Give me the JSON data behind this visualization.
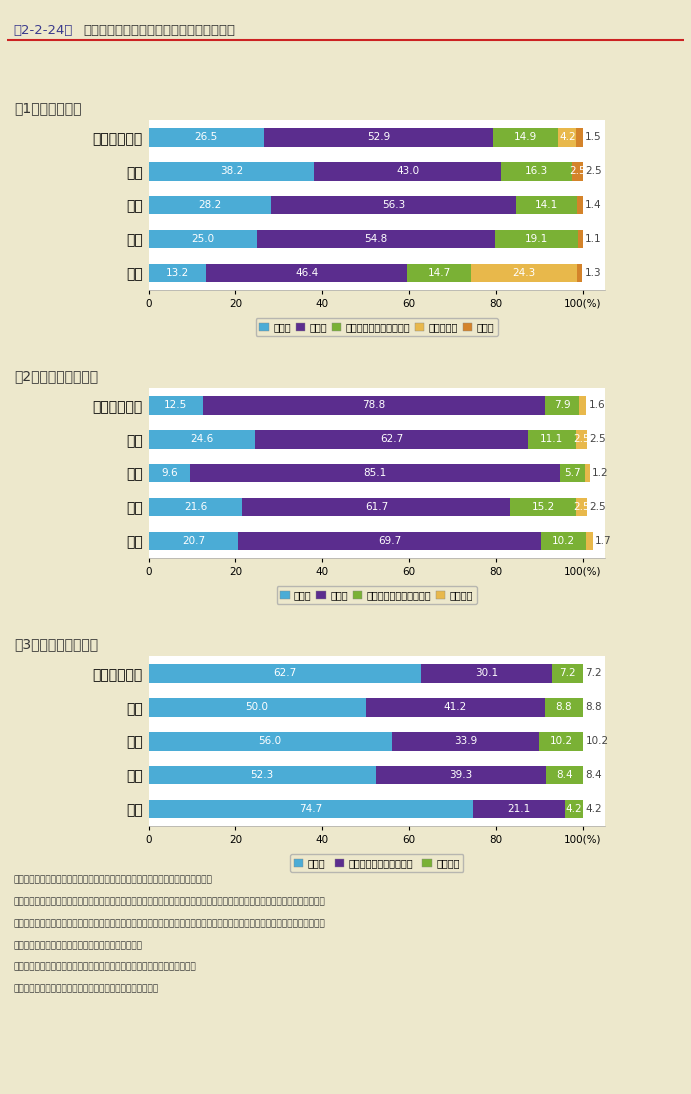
{
  "title_part1": "第2-2-24図",
  "title_part2": "大学の学位別進路動向（平成１４年３月）",
  "bg_color": "#ede8cc",
  "bar_bg": "#ffffff",
  "section1_title": "（1）大学卒業時",
  "section1_categories": [
    "自然科学平均",
    "理学",
    "工学",
    "農学",
    "保健"
  ],
  "section1_data": [
    [
      26.5,
      38.2,
      28.2,
      25.0,
      13.2
    ],
    [
      52.9,
      43.0,
      56.3,
      54.8,
      46.4
    ],
    [
      14.9,
      16.3,
      14.1,
      19.1,
      14.7
    ],
    [
      4.2,
      0.0,
      0.0,
      0.0,
      24.3
    ],
    [
      1.5,
      2.5,
      1.4,
      1.1,
      1.3
    ]
  ],
  "section1_colors": [
    "#4bacd6",
    "#5b2d8e",
    "#7ab135",
    "#e8b84b",
    "#d4832a"
  ],
  "section1_legend": [
    "進学者",
    "就職者",
    "就職が決まっていない者",
    "臨床研修医",
    "その他"
  ],
  "section2_title": "（2）修士課程修了時",
  "section2_categories": [
    "自然科学平均",
    "理学",
    "工学",
    "農学",
    "保健"
  ],
  "section2_data": [
    [
      12.5,
      24.6,
      9.6,
      21.6,
      20.7
    ],
    [
      78.8,
      62.7,
      85.1,
      61.7,
      69.7
    ],
    [
      7.9,
      11.1,
      5.7,
      15.2,
      10.2
    ],
    [
      1.6,
      2.5,
      1.2,
      2.5,
      1.7
    ]
  ],
  "section2_colors": [
    "#4bacd6",
    "#5b2d8e",
    "#7ab135",
    "#e8b84b"
  ],
  "section2_legend": [
    "進学者",
    "就職者",
    "就職が決まっていない者",
    "その他１"
  ],
  "section3_title": "（3）博士課程修了時",
  "section3_categories": [
    "自然科学平均",
    "理学",
    "工学",
    "農学",
    "保健"
  ],
  "section3_data": [
    [
      62.7,
      50.0,
      56.0,
      52.3,
      74.7
    ],
    [
      30.1,
      41.2,
      33.9,
      39.3,
      21.1
    ],
    [
      7.2,
      8.8,
      10.2,
      8.4,
      4.2
    ]
  ],
  "section3_colors": [
    "#4bacd6",
    "#5b2d8e",
    "#7ab135"
  ],
  "section3_legend": [
    "就職者",
    "就職が決まっていない者",
    "その他２"
  ],
  "note_lines": [
    "注）１．「自然科学平均」とは、理学・工学・農学・保健の合計の平均値である。",
    "　　２．「就職が決まっていない者」とは、一時的な仕事に就いた者、家事手伝い、研究生として学校に残っている者及び専修学",
    "　　　　校・各種学校・外国の学校・職業能力開発施設等へ入学した者、又は就職でも進学者でもないことが明らかな者である。",
    "　　３．「その他１」とは、死亡・不詳の者である。",
    "　　４．「その他２」とは、進学者、臨床研修医、死亡・不詳の者である。",
    "資料：文部科学省「学校基本調査報告書（平成１４年度）」"
  ]
}
